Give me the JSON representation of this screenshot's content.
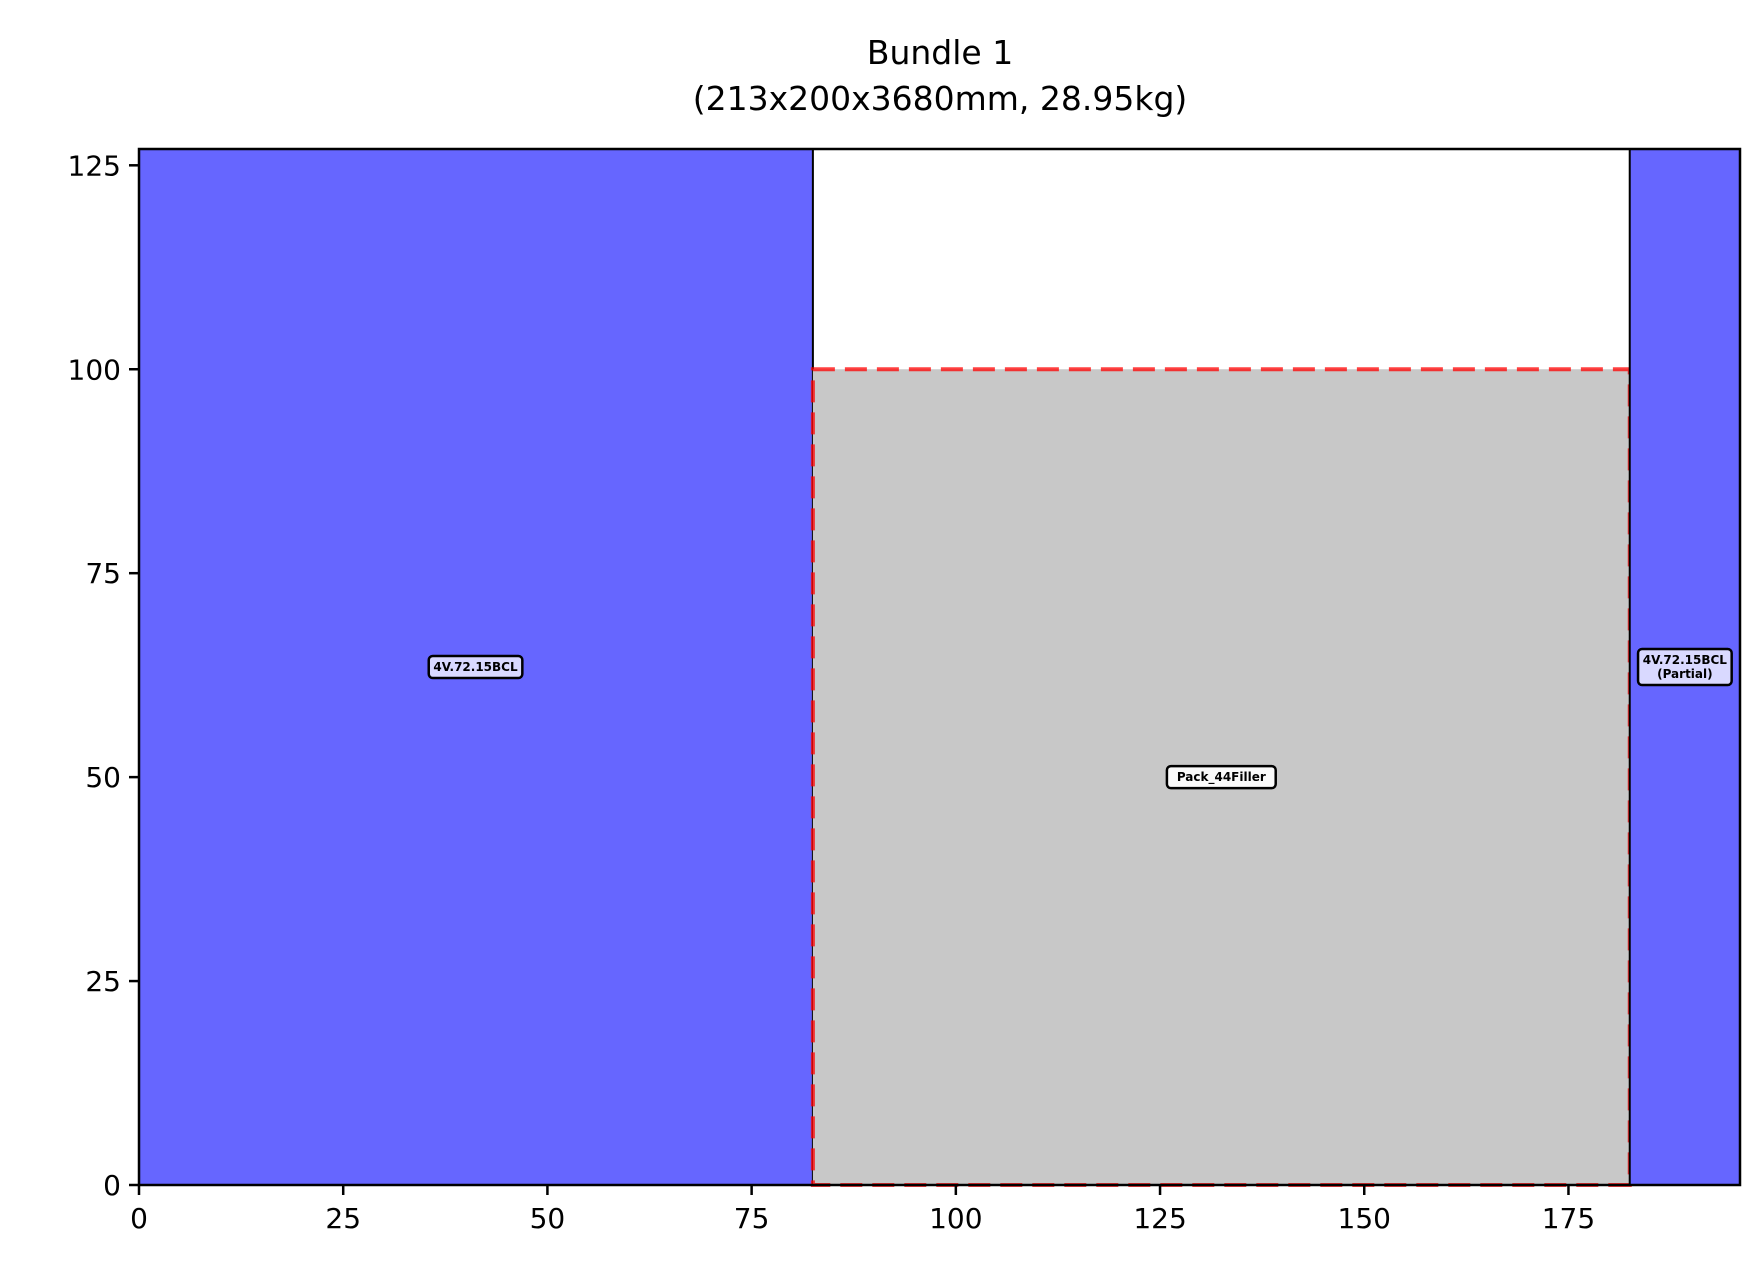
{
  "chart_data": {
    "type": "rectangle-packing",
    "title_line1": "Bundle 1",
    "title_line2": "(213x200x3680mm, 28.95kg)",
    "xlabel": "",
    "ylabel": "",
    "xlim": [
      0,
      196
    ],
    "ylim": [
      0,
      127
    ],
    "xticks": [
      0,
      25,
      50,
      75,
      100,
      125,
      150,
      175
    ],
    "yticks": [
      0,
      25,
      50,
      75,
      100,
      125
    ],
    "grid": false,
    "colors": {
      "item": "#6666ff",
      "filler": "#c8c8c8",
      "filler_border": "#ff0000",
      "empty": "#ffffff"
    },
    "items": [
      {
        "label": "4V.72.15BCL",
        "x": 0,
        "y": 0,
        "w": 82.5,
        "h": 127,
        "kind": "item",
        "label_x": 41.2,
        "label_y": 63.5
      },
      {
        "label": "Pack_44Filler",
        "x": 82.5,
        "y": 0,
        "w": 100,
        "h": 100,
        "kind": "filler",
        "label_x": 132.5,
        "label_y": 50
      },
      {
        "label": "4V.72.15BCL",
        "label2": "(Partial)",
        "x": 182.5,
        "y": 0,
        "w": 13.5,
        "h": 127,
        "kind": "item",
        "label_x": 189.25,
        "label_y": 63.5
      }
    ]
  }
}
